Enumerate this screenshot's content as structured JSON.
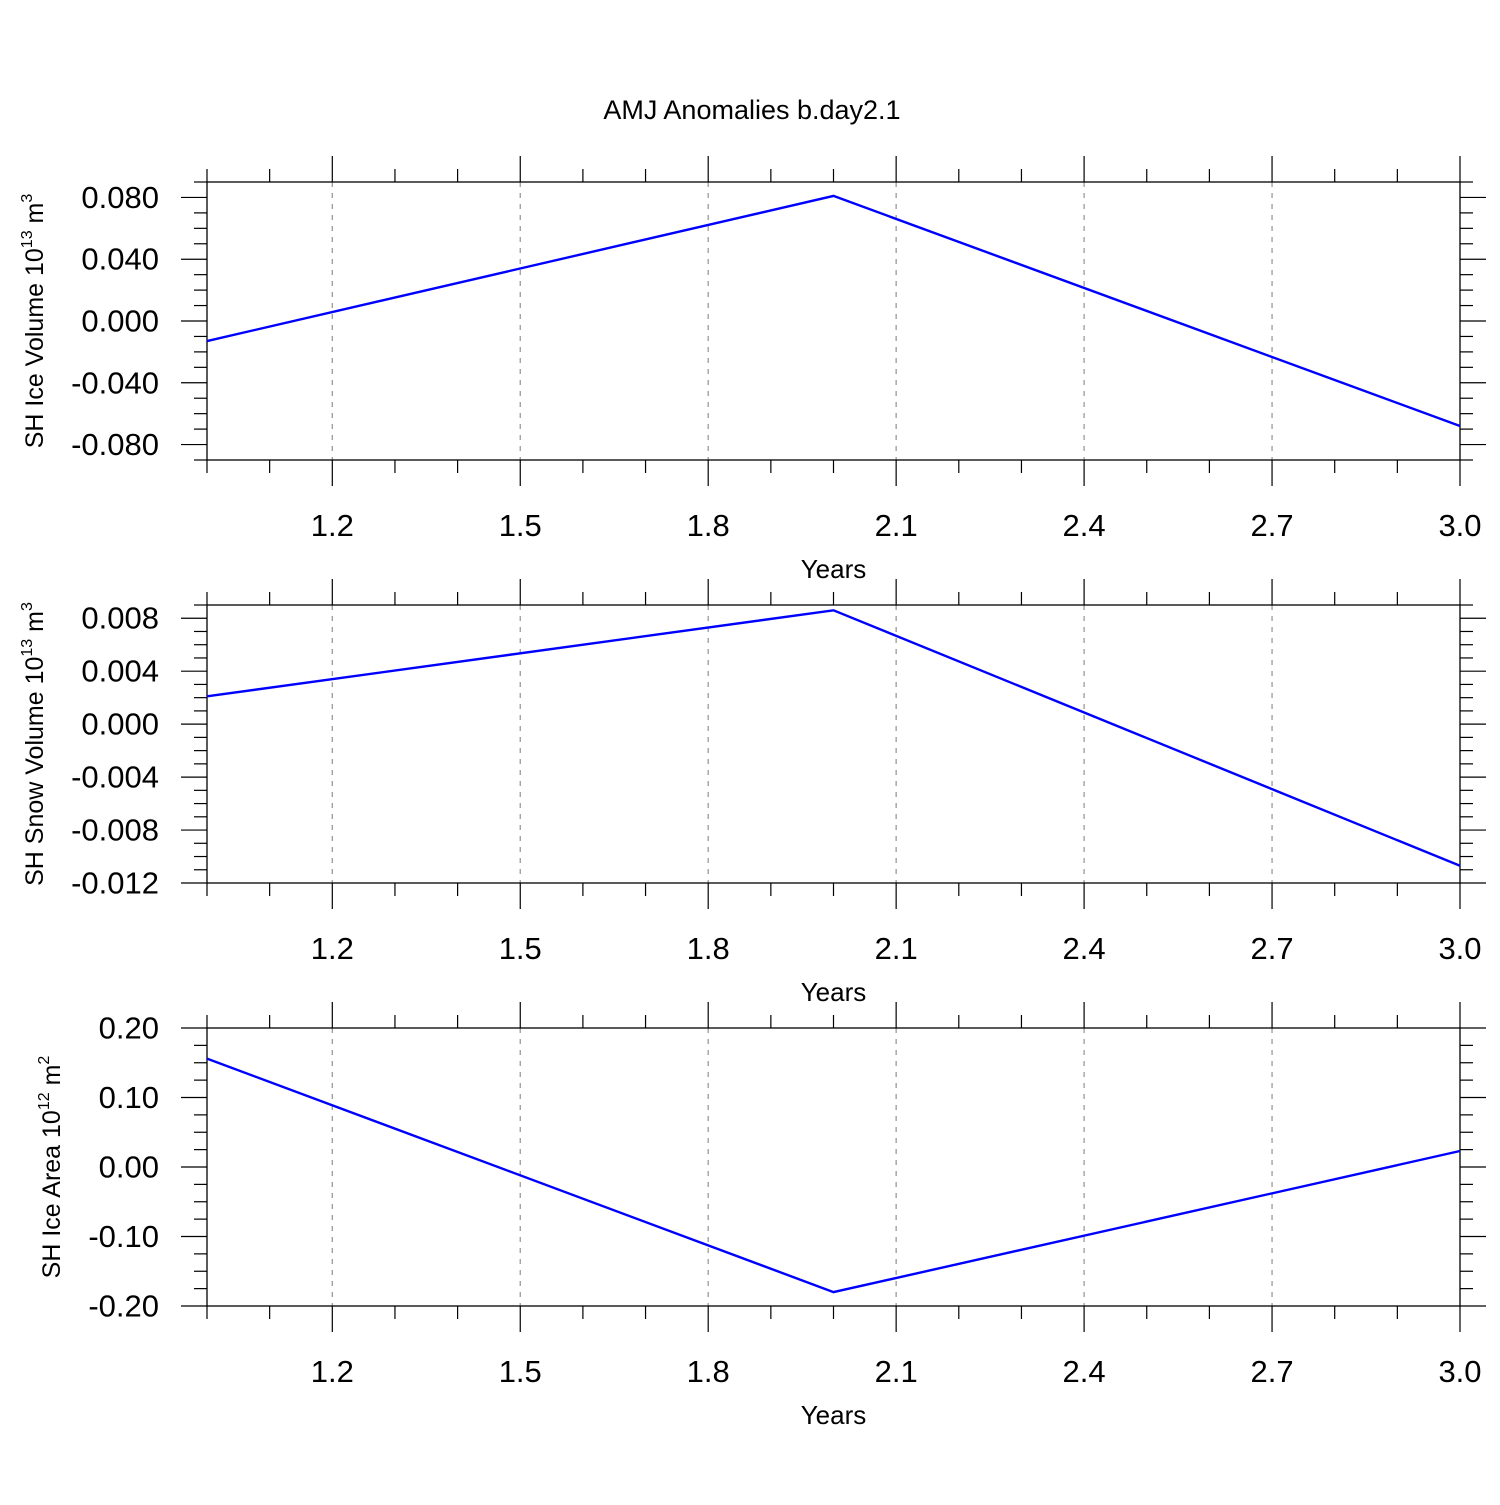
{
  "page_title": "AMJ Anomalies b.day2.1",
  "colors": {
    "line": "#0000ff",
    "frame": "#000000",
    "grid": "#9a9a9a"
  },
  "chart_data": [
    {
      "type": "line",
      "title": "",
      "xlabel": "Years",
      "ylabel": {
        "main": "SH Ice Volume 10",
        "exp": "13",
        "unit": " m",
        "unit_exp": "3"
      },
      "xlim": [
        1,
        3
      ],
      "ylim": [
        -0.09,
        0.09
      ],
      "xticks": [
        1.2,
        1.5,
        1.8,
        2.1,
        2.4,
        2.7,
        3.0
      ],
      "xtick_labels": [
        "1.2",
        "1.5",
        "1.8",
        "2.1",
        "2.4",
        "2.7",
        "3.0"
      ],
      "yticks": [
        0.08,
        0.04,
        0.0,
        -0.04,
        -0.08
      ],
      "ytick_labels": [
        "0.080",
        "0.040",
        "0.000",
        "-0.040",
        "-0.080"
      ],
      "y_minor_step": 0.01,
      "grid": "x-dashed",
      "series": [
        {
          "x": [
            1,
            2,
            3
          ],
          "y": [
            -0.013,
            0.081,
            -0.068
          ],
          "color": "#0000ff"
        }
      ]
    },
    {
      "type": "line",
      "title": "",
      "xlabel": "Years",
      "ylabel": {
        "main": "SH Snow Volume 10",
        "exp": "13",
        "unit": " m",
        "unit_exp": "3"
      },
      "xlim": [
        1,
        3
      ],
      "ylim": [
        -0.012,
        0.009
      ],
      "xticks": [
        1.2,
        1.5,
        1.8,
        2.1,
        2.4,
        2.7,
        3.0
      ],
      "xtick_labels": [
        "1.2",
        "1.5",
        "1.8",
        "2.1",
        "2.4",
        "2.7",
        "3.0"
      ],
      "yticks": [
        0.008,
        0.004,
        0.0,
        -0.004,
        -0.008,
        -0.012
      ],
      "ytick_labels": [
        "0.008",
        "0.004",
        "0.000",
        "-0.004",
        "-0.008",
        "-0.012"
      ],
      "y_minor_step": 0.001,
      "grid": "x-dashed",
      "series": [
        {
          "x": [
            1,
            2,
            3
          ],
          "y": [
            0.0021,
            0.0086,
            -0.0107
          ],
          "color": "#0000ff"
        }
      ]
    },
    {
      "type": "line",
      "title": "",
      "xlabel": "Years",
      "ylabel": {
        "main": "SH Ice Area 10",
        "exp": "12",
        "unit": " m",
        "unit_exp": "2"
      },
      "xlim": [
        1,
        3
      ],
      "ylim": [
        -0.2,
        0.2
      ],
      "xticks": [
        1.2,
        1.5,
        1.8,
        2.1,
        2.4,
        2.7,
        3.0
      ],
      "xtick_labels": [
        "1.2",
        "1.5",
        "1.8",
        "2.1",
        "2.4",
        "2.7",
        "3.0"
      ],
      "yticks": [
        0.2,
        0.1,
        0.0,
        -0.1,
        -0.2
      ],
      "ytick_labels": [
        "0.20",
        "0.10",
        "0.00",
        "-0.10",
        "-0.20"
      ],
      "y_minor_step": 0.025,
      "grid": "x-dashed",
      "series": [
        {
          "x": [
            1,
            2,
            3
          ],
          "y": [
            0.156,
            -0.18,
            0.023
          ],
          "color": "#0000ff"
        }
      ]
    }
  ]
}
